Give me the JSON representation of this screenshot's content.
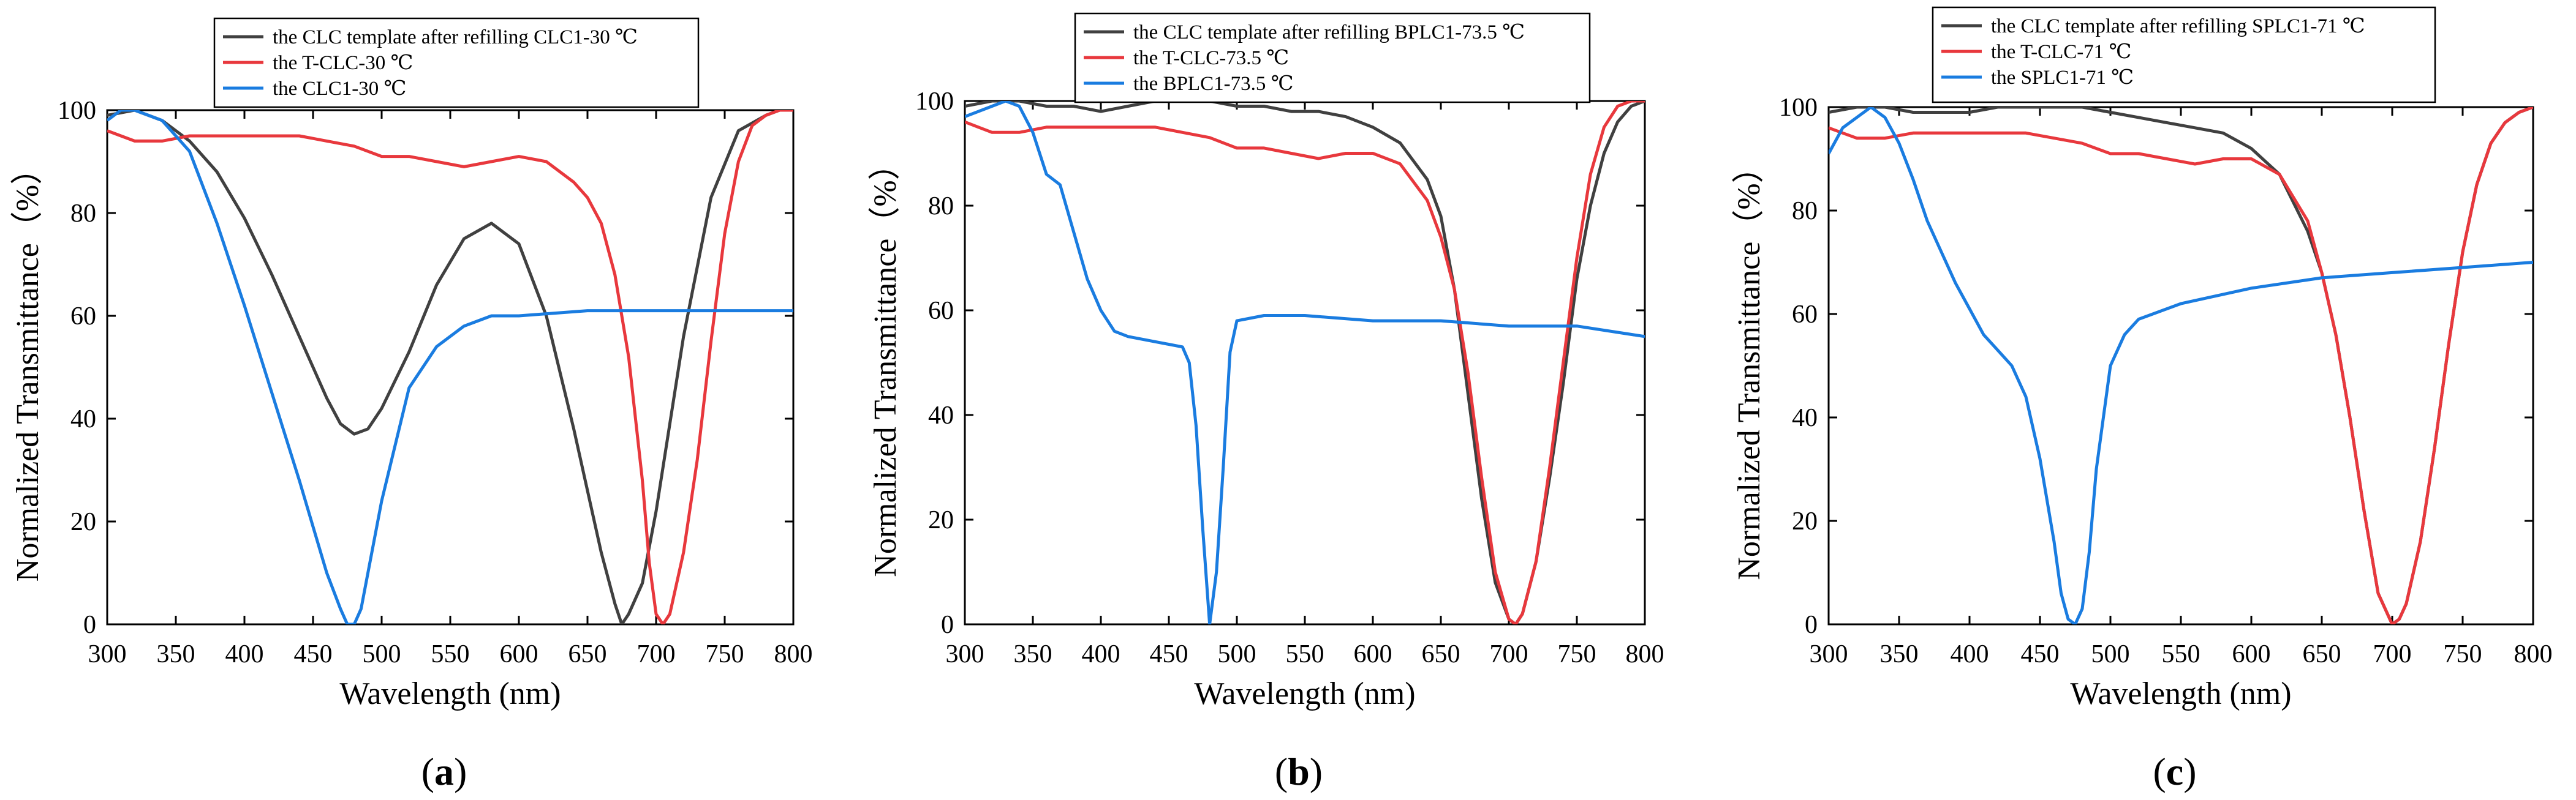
{
  "chart_data": [
    {
      "type": "line",
      "panel_label": "a",
      "xlabel": "Wavelength (nm)",
      "ylabel": "Normalized Transmittance（%）",
      "xlim": [
        300,
        800
      ],
      "ylim": [
        0,
        100
      ],
      "xticks": [
        300,
        350,
        400,
        450,
        500,
        550,
        600,
        650,
        700,
        750,
        800
      ],
      "yticks": [
        0,
        20,
        40,
        60,
        80,
        100
      ],
      "legend_position": "top-center",
      "series": [
        {
          "name": "the CLC template after refilling CLC1-30 ℃",
          "color": "#404040",
          "x": [
            300,
            320,
            340,
            360,
            380,
            400,
            420,
            440,
            460,
            470,
            480,
            490,
            500,
            520,
            540,
            560,
            580,
            600,
            620,
            640,
            660,
            670,
            675,
            680,
            690,
            700,
            720,
            740,
            760,
            780,
            790,
            800
          ],
          "y": [
            99,
            100,
            98,
            94,
            88,
            79,
            68,
            56,
            44,
            39,
            37,
            38,
            42,
            53,
            66,
            75,
            78,
            74,
            60,
            38,
            14,
            4,
            0,
            2,
            8,
            22,
            56,
            83,
            96,
            99,
            100,
            100
          ]
        },
        {
          "name": "the T-CLC-30 ℃",
          "color": "#e8383d",
          "x": [
            300,
            310,
            320,
            340,
            360,
            380,
            400,
            420,
            440,
            460,
            480,
            500,
            520,
            540,
            560,
            580,
            600,
            620,
            640,
            650,
            660,
            670,
            680,
            690,
            695,
            700,
            705,
            710,
            720,
            730,
            740,
            750,
            760,
            770,
            780,
            790,
            800
          ],
          "y": [
            96,
            95,
            94,
            94,
            95,
            95,
            95,
            95,
            95,
            94,
            93,
            91,
            91,
            90,
            89,
            90,
            91,
            90,
            86,
            83,
            78,
            68,
            52,
            28,
            12,
            2,
            0,
            2,
            14,
            32,
            55,
            76,
            90,
            97,
            99,
            100,
            100
          ]
        },
        {
          "name": "the CLC1-30 ℃",
          "color": "#1a7ce0",
          "x": [
            300,
            310,
            320,
            330,
            340,
            360,
            380,
            400,
            420,
            440,
            460,
            470,
            475,
            480,
            485,
            490,
            500,
            520,
            540,
            560,
            580,
            600,
            650,
            700,
            750,
            800
          ],
          "y": [
            98,
            100,
            100,
            99,
            98,
            92,
            78,
            62,
            45,
            28,
            10,
            3,
            0,
            0,
            3,
            10,
            24,
            46,
            54,
            58,
            60,
            60,
            61,
            61,
            61,
            61
          ]
        }
      ]
    },
    {
      "type": "line",
      "panel_label": "b",
      "xlabel": "Wavelength (nm)",
      "ylabel": "Normalized Transmittance（%）",
      "xlim": [
        300,
        800
      ],
      "ylim": [
        0,
        100
      ],
      "xticks": [
        300,
        350,
        400,
        450,
        500,
        550,
        600,
        650,
        700,
        750,
        800
      ],
      "yticks": [
        0,
        20,
        40,
        60,
        80,
        100
      ],
      "legend_position": "top-center",
      "series": [
        {
          "name": "the CLC template after refilling BPLC1-73.5 ℃",
          "color": "#404040",
          "x": [
            300,
            320,
            340,
            360,
            380,
            400,
            420,
            440,
            460,
            480,
            500,
            520,
            540,
            560,
            580,
            600,
            620,
            640,
            650,
            660,
            670,
            680,
            690,
            700,
            705,
            710,
            720,
            730,
            740,
            750,
            760,
            770,
            780,
            790,
            800
          ],
          "y": [
            99,
            100,
            100,
            99,
            99,
            98,
            99,
            100,
            100,
            100,
            99,
            99,
            98,
            98,
            97,
            95,
            92,
            85,
            78,
            64,
            44,
            24,
            8,
            1,
            0,
            2,
            12,
            28,
            46,
            66,
            80,
            90,
            96,
            99,
            100
          ]
        },
        {
          "name": "the T-CLC-73.5 ℃",
          "color": "#e8383d",
          "x": [
            300,
            310,
            320,
            340,
            360,
            380,
            400,
            420,
            440,
            460,
            480,
            500,
            520,
            540,
            560,
            580,
            600,
            620,
            640,
            650,
            660,
            670,
            680,
            690,
            700,
            705,
            710,
            720,
            730,
            740,
            750,
            760,
            770,
            780,
            790,
            800
          ],
          "y": [
            96,
            95,
            94,
            94,
            95,
            95,
            95,
            95,
            95,
            94,
            93,
            91,
            91,
            90,
            89,
            90,
            90,
            88,
            81,
            74,
            64,
            48,
            28,
            10,
            1,
            0,
            2,
            12,
            30,
            50,
            70,
            86,
            95,
            99,
            100,
            100
          ]
        },
        {
          "name": "the BPLC1-73.5 ℃",
          "color": "#1a7ce0",
          "x": [
            300,
            310,
            320,
            330,
            340,
            350,
            360,
            370,
            380,
            390,
            400,
            410,
            420,
            440,
            460,
            465,
            470,
            475,
            480,
            485,
            490,
            495,
            500,
            520,
            550,
            600,
            650,
            700,
            750,
            800
          ],
          "y": [
            97,
            98,
            99,
            100,
            99,
            94,
            86,
            84,
            75,
            66,
            60,
            56,
            55,
            54,
            53,
            50,
            38,
            18,
            0,
            10,
            30,
            52,
            58,
            59,
            59,
            58,
            58,
            57,
            57,
            55
          ]
        }
      ]
    },
    {
      "type": "line",
      "panel_label": "c",
      "xlabel": "Wavelength (nm)",
      "ylabel": "Normalized Transmittance（%）",
      "xlim": [
        300,
        800
      ],
      "ylim": [
        0,
        100
      ],
      "xticks": [
        300,
        350,
        400,
        450,
        500,
        550,
        600,
        650,
        700,
        750,
        800
      ],
      "yticks": [
        0,
        20,
        40,
        60,
        80,
        100
      ],
      "legend_position": "top-center",
      "series": [
        {
          "name": "the CLC template after refilling SPLC1-71 ℃",
          "color": "#404040",
          "x": [
            300,
            320,
            340,
            360,
            380,
            400,
            420,
            440,
            460,
            480,
            500,
            520,
            540,
            560,
            580,
            600,
            620,
            640,
            650,
            660,
            670,
            680,
            690,
            700,
            705,
            710,
            720,
            730,
            740,
            750,
            760,
            770,
            780,
            790,
            800
          ],
          "y": [
            99,
            100,
            100,
            99,
            99,
            99,
            100,
            100,
            100,
            100,
            99,
            98,
            97,
            96,
            95,
            92,
            87,
            76,
            68,
            56,
            40,
            22,
            6,
            0,
            1,
            4,
            16,
            34,
            54,
            72,
            85,
            93,
            97,
            99,
            100
          ]
        },
        {
          "name": "the T-CLC-71 ℃",
          "color": "#e8383d",
          "x": [
            300,
            310,
            320,
            340,
            360,
            380,
            400,
            420,
            440,
            460,
            480,
            500,
            520,
            540,
            560,
            580,
            600,
            620,
            640,
            650,
            660,
            670,
            680,
            690,
            700,
            705,
            710,
            720,
            730,
            740,
            750,
            760,
            770,
            780,
            790,
            800
          ],
          "y": [
            96,
            95,
            94,
            94,
            95,
            95,
            95,
            95,
            95,
            94,
            93,
            91,
            91,
            90,
            89,
            90,
            90,
            87,
            78,
            68,
            56,
            40,
            22,
            6,
            0,
            1,
            4,
            16,
            34,
            54,
            72,
            85,
            93,
            97,
            99,
            100
          ]
        },
        {
          "name": "the SPLC1-71 ℃",
          "color": "#1a7ce0",
          "x": [
            300,
            310,
            320,
            330,
            340,
            350,
            360,
            370,
            380,
            390,
            400,
            410,
            420,
            430,
            440,
            450,
            460,
            465,
            470,
            475,
            480,
            485,
            490,
            500,
            510,
            520,
            550,
            600,
            650,
            700,
            750,
            800
          ],
          "y": [
            91,
            96,
            98,
            100,
            98,
            93,
            86,
            78,
            72,
            66,
            61,
            56,
            53,
            50,
            44,
            32,
            16,
            6,
            1,
            0,
            3,
            14,
            30,
            50,
            56,
            59,
            62,
            65,
            67,
            68,
            69,
            70
          ]
        }
      ]
    }
  ]
}
